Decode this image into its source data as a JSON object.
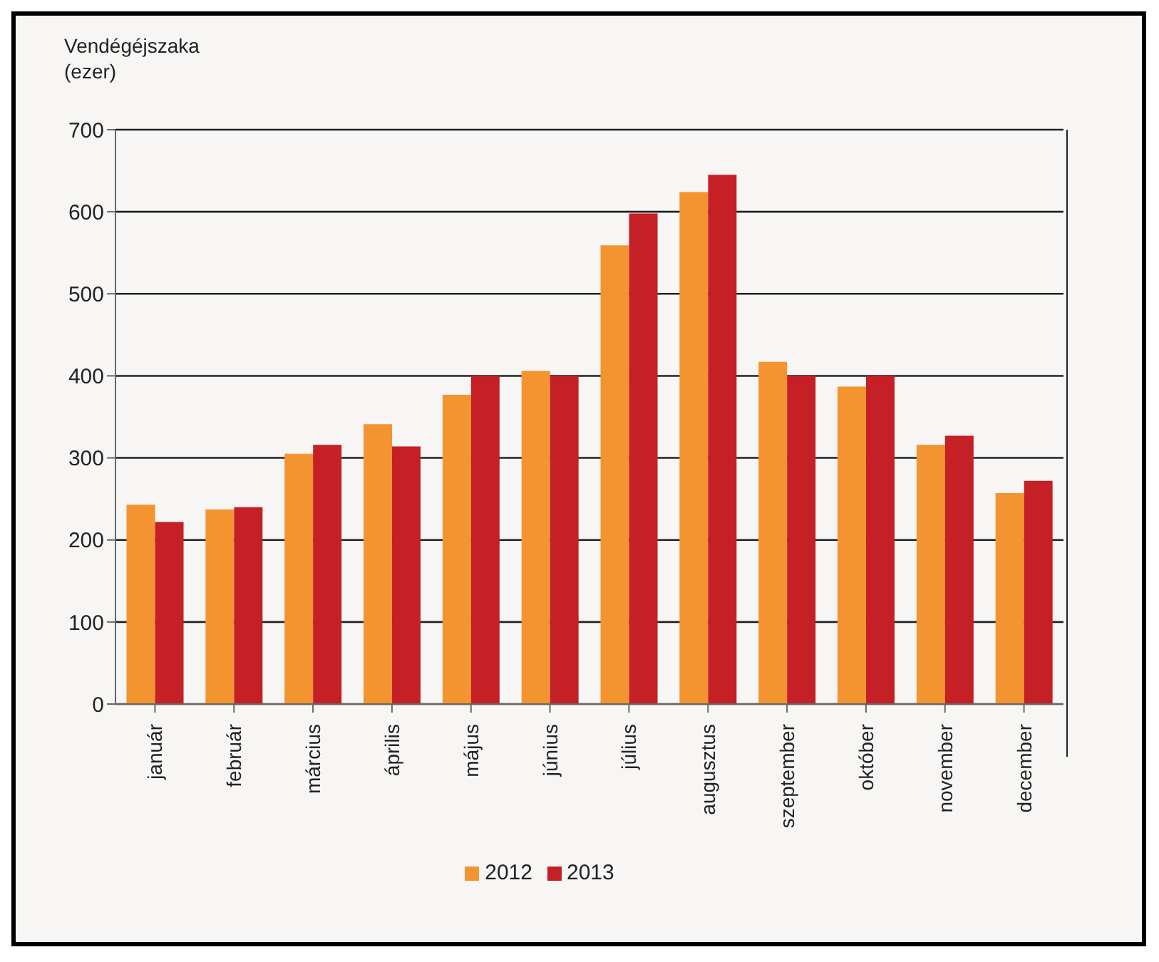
{
  "chart_data": {
    "type": "bar",
    "ylabel": "Vendégéjszaka\n(ezer)",
    "categories": [
      "január",
      "február",
      "március",
      "április",
      "május",
      "június",
      "július",
      "augusztus",
      "szeptember",
      "október",
      "november",
      "december"
    ],
    "series": [
      {
        "name": "2012",
        "color": "#f39430",
        "values": [
          243,
          237,
          305,
          341,
          377,
          406,
          559,
          624,
          417,
          387,
          316,
          257
        ]
      },
      {
        "name": "2013",
        "color": "#c42026",
        "values": [
          222,
          240,
          316,
          314,
          400,
          400,
          598,
          645,
          400,
          400,
          327,
          272
        ]
      }
    ],
    "ylim": [
      0,
      700
    ],
    "yticks": [
      0,
      100,
      200,
      300,
      400,
      500,
      600,
      700
    ],
    "grid": "y",
    "legend": "bottom"
  }
}
